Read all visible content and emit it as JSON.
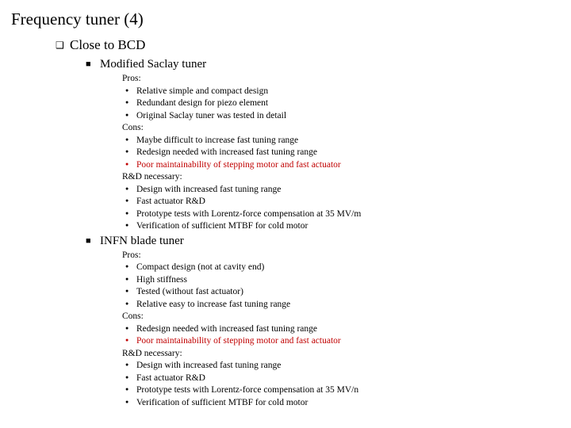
{
  "title": "Frequency tuner (4)",
  "heading": "Close to BCD",
  "colors": {
    "text": "#000000",
    "highlight": "#c00000",
    "background": "#ffffff"
  },
  "tuners": [
    {
      "name": "Modified Saclay tuner",
      "pros_label": "Pros:",
      "pros": [
        "Relative simple and compact design",
        "Redundant design for piezo element",
        "Original Saclay tuner was tested in detail"
      ],
      "cons_label": "Cons:",
      "cons": [
        {
          "text": "Maybe difficult to increase fast tuning range",
          "highlight": false
        },
        {
          "text": "Redesign needed with increased fast tuning range",
          "highlight": false
        },
        {
          "text": "Poor maintainability of stepping motor and fast actuator",
          "highlight": true
        }
      ],
      "rnd_label": "R&D necessary:",
      "rnd": [
        "Design with increased fast tuning range",
        "Fast actuator R&D",
        "Prototype tests with Lorentz-force compensation at 35 MV/m",
        "Verification of sufficient MTBF for cold motor"
      ]
    },
    {
      "name": "INFN blade tuner",
      "pros_label": "Pros:",
      "pros": [
        "Compact design (not at cavity end)",
        "High stiffness",
        "Tested (without fast actuator)",
        "Relative easy to increase fast tuning range"
      ],
      "cons_label": "Cons:",
      "cons": [
        {
          "text": "Redesign needed with increased fast tuning range",
          "highlight": false
        },
        {
          "text": "Poor maintainability of stepping motor and fast actuator",
          "highlight": true
        }
      ],
      "rnd_label": "R&D necessary:",
      "rnd": [
        "Design with increased fast tuning range",
        "Fast actuator R&D",
        "Prototype tests with Lorentz-force compensation at 35 MV/n",
        "Verification of sufficient MTBF for cold motor"
      ]
    }
  ]
}
